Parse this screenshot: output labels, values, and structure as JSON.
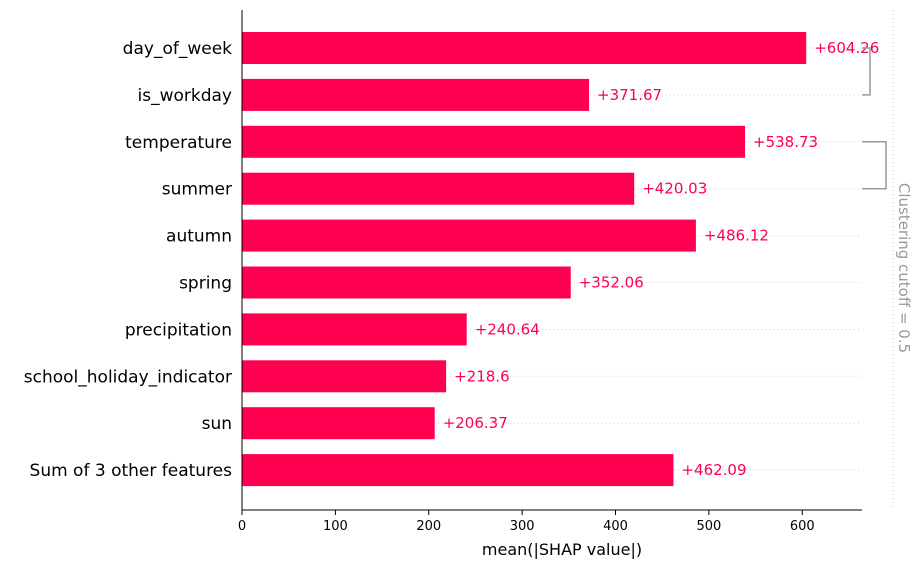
{
  "chart_data": {
    "type": "bar",
    "orientation": "horizontal",
    "categories": [
      "day_of_week",
      "is_workday",
      "temperature",
      "summer",
      "autumn",
      "spring",
      "precipitation",
      "school_holiday_indicator",
      "sun",
      "Sum of 3 other features"
    ],
    "values": [
      604.26,
      371.67,
      538.73,
      420.03,
      486.12,
      352.06,
      240.64,
      218.6,
      206.37,
      462.09
    ],
    "value_labels": [
      "+604.26",
      "+371.67",
      "+538.73",
      "+420.03",
      "+486.12",
      "+352.06",
      "+240.64",
      "+218.6",
      "+206.37",
      "+462.09"
    ],
    "xlabel": "mean(|SHAP value|)",
    "ylabel": "",
    "xlim": [
      0,
      664
    ],
    "xticks": [
      0,
      100,
      200,
      300,
      400,
      500,
      600
    ],
    "xtick_labels": [
      "0",
      "100",
      "200",
      "300",
      "400",
      "500",
      "600"
    ],
    "bar_color": "#ff0051",
    "clustering": {
      "label": "Clustering cutoff = 0.5",
      "line_color": "#999999",
      "brackets": [
        [
          0,
          1
        ],
        [
          2,
          3
        ]
      ]
    }
  }
}
